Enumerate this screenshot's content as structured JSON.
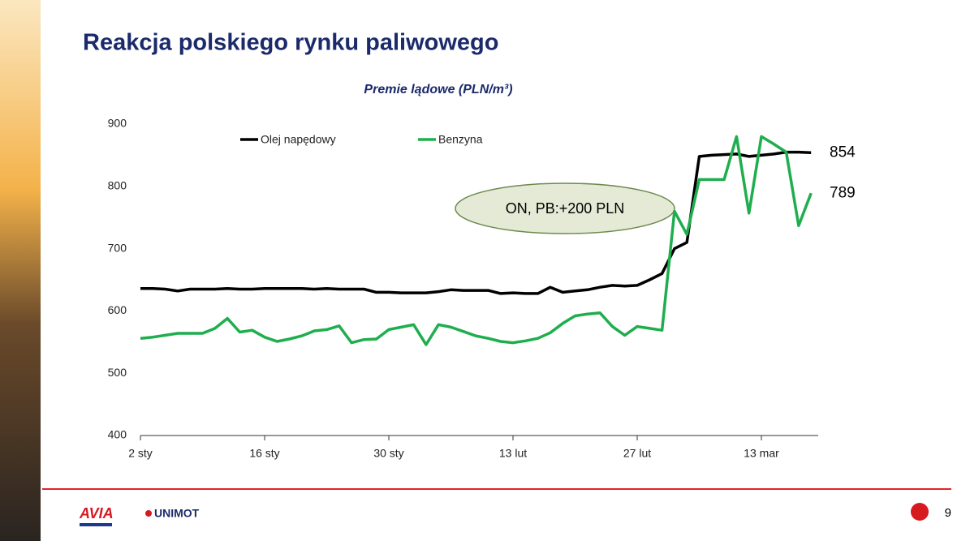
{
  "slide": {
    "title": "Reakcja polskiego rynku paliwowego",
    "logo_left": "AVIA",
    "logo_right": "UNIMOT",
    "page_number": "9"
  },
  "chart_data": {
    "type": "line",
    "title": "Premie lądowe (PLN/m³)",
    "annotation": "ON, PB:+200 PLN",
    "categories": [
      "2 sty",
      null,
      null,
      null,
      null,
      null,
      null,
      null,
      null,
      null,
      "16 sty",
      null,
      null,
      null,
      null,
      null,
      null,
      null,
      null,
      null,
      "30 sty",
      null,
      null,
      null,
      null,
      null,
      null,
      null,
      null,
      null,
      "13 lut",
      null,
      null,
      null,
      null,
      null,
      null,
      null,
      null,
      null,
      "27 lut",
      null,
      null,
      null,
      null,
      null,
      null,
      null,
      null,
      null,
      "13 mar",
      null,
      null,
      null,
      null
    ],
    "series": [
      {
        "name": "Olej napędowy",
        "color": "#000000",
        "values": [
          636,
          636,
          635,
          632,
          635,
          635,
          635,
          636,
          635,
          635,
          636,
          636,
          636,
          636,
          635,
          636,
          635,
          635,
          635,
          630,
          630,
          629,
          629,
          629,
          631,
          634,
          633,
          633,
          633,
          628,
          629,
          628,
          628,
          638,
          630,
          632,
          634,
          638,
          641,
          640,
          641,
          650,
          660,
          700,
          710,
          848,
          850,
          851,
          852,
          848,
          850,
          852,
          855,
          855,
          854
        ]
      },
      {
        "name": "Benzyna",
        "color": "#1fae4e",
        "values": [
          556,
          558,
          561,
          564,
          564,
          564,
          572,
          588,
          566,
          569,
          558,
          551,
          555,
          560,
          568,
          570,
          576,
          549,
          554,
          555,
          570,
          574,
          578,
          546,
          578,
          574,
          567,
          560,
          556,
          551,
          549,
          552,
          556,
          565,
          580,
          592,
          595,
          597,
          575,
          561,
          575,
          572,
          569,
          760,
          723,
          811,
          811,
          811,
          880,
          757,
          880,
          868,
          855,
          737,
          789
        ]
      }
    ],
    "ylim": [
      400,
      900
    ],
    "yticks": [
      400,
      500,
      600,
      700,
      800,
      900
    ],
    "grid": false,
    "legend": "top"
  }
}
